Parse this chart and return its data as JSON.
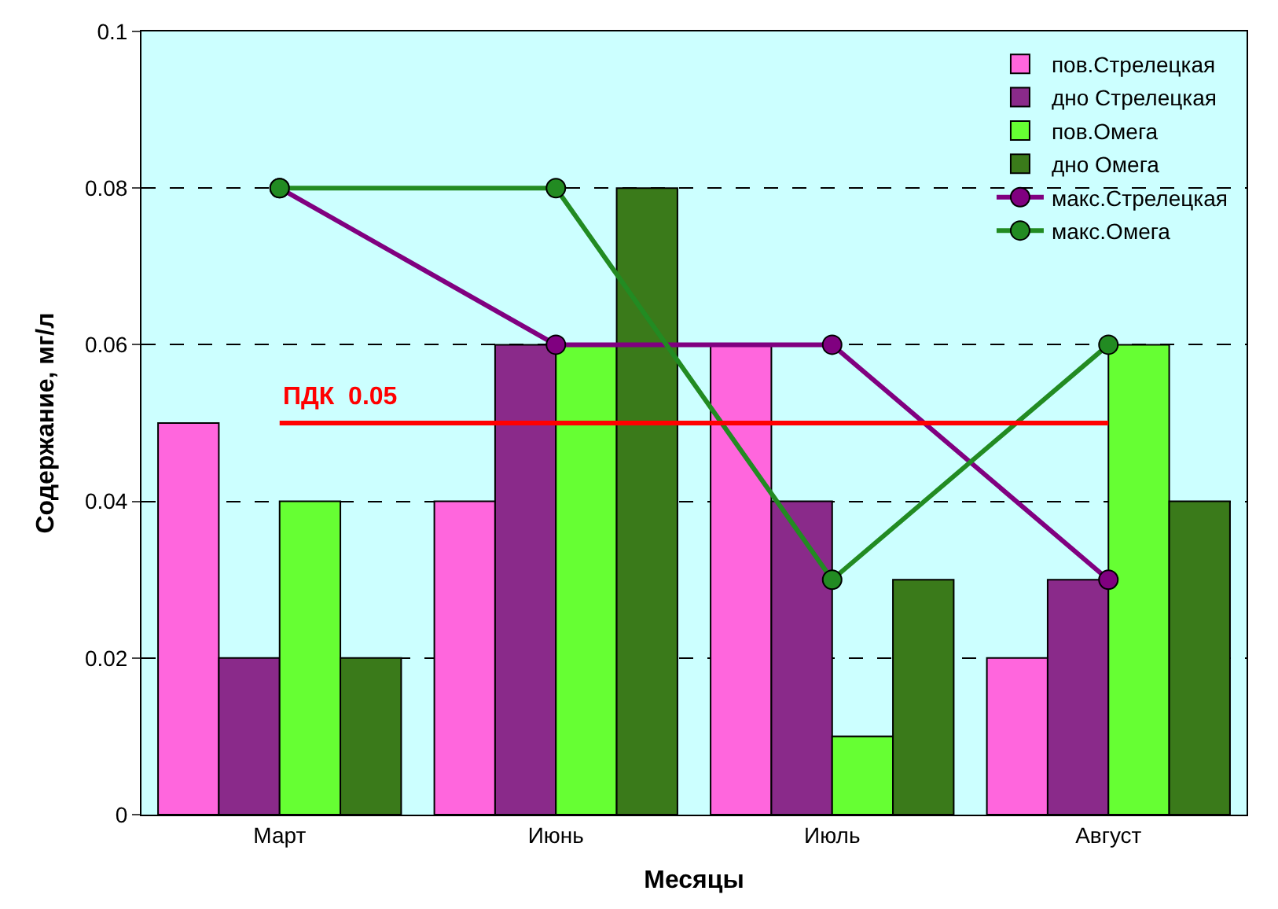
{
  "chart_data": {
    "type": "bar",
    "xlabel": "Месяцы",
    "ylabel": "Содержание, мг/л",
    "categories": [
      "Март",
      "Июнь",
      "Июль",
      "Август"
    ],
    "series": [
      {
        "name": "пов.Стрелецкая",
        "color": "#ff66dd",
        "values": [
          0.05,
          0.04,
          0.06,
          0.02
        ]
      },
      {
        "name": "дно Стрелецкая",
        "color": "#8a2a8a",
        "values": [
          0.02,
          0.06,
          0.04,
          0.03
        ]
      },
      {
        "name": "пов.Омега",
        "color": "#66ff33",
        "values": [
          0.04,
          0.06,
          0.01,
          0.06
        ]
      },
      {
        "name": "дно Омега",
        "color": "#3a7a1a",
        "values": [
          0.02,
          0.08,
          0.03,
          0.04
        ]
      },
      {
        "name": "макс.Стрелецкая",
        "type": "line",
        "color": "#800080",
        "values": [
          0.08,
          0.06,
          0.06,
          0.03
        ]
      },
      {
        "name": "макс.Омега",
        "type": "line",
        "color": "#228b22",
        "values": [
          0.08,
          0.08,
          0.03,
          0.06
        ]
      }
    ],
    "ylim": [
      0,
      0.1
    ],
    "yticks": [
      0,
      0.02,
      0.04,
      0.06,
      0.08,
      0.1
    ],
    "ref_lines": [
      {
        "axis": "y",
        "value": 0.05,
        "label": "ПДК  0.05",
        "color": "#ff0000"
      }
    ],
    "grid": "y",
    "legend": "top right",
    "marker": "circle",
    "line_style": "solid"
  }
}
